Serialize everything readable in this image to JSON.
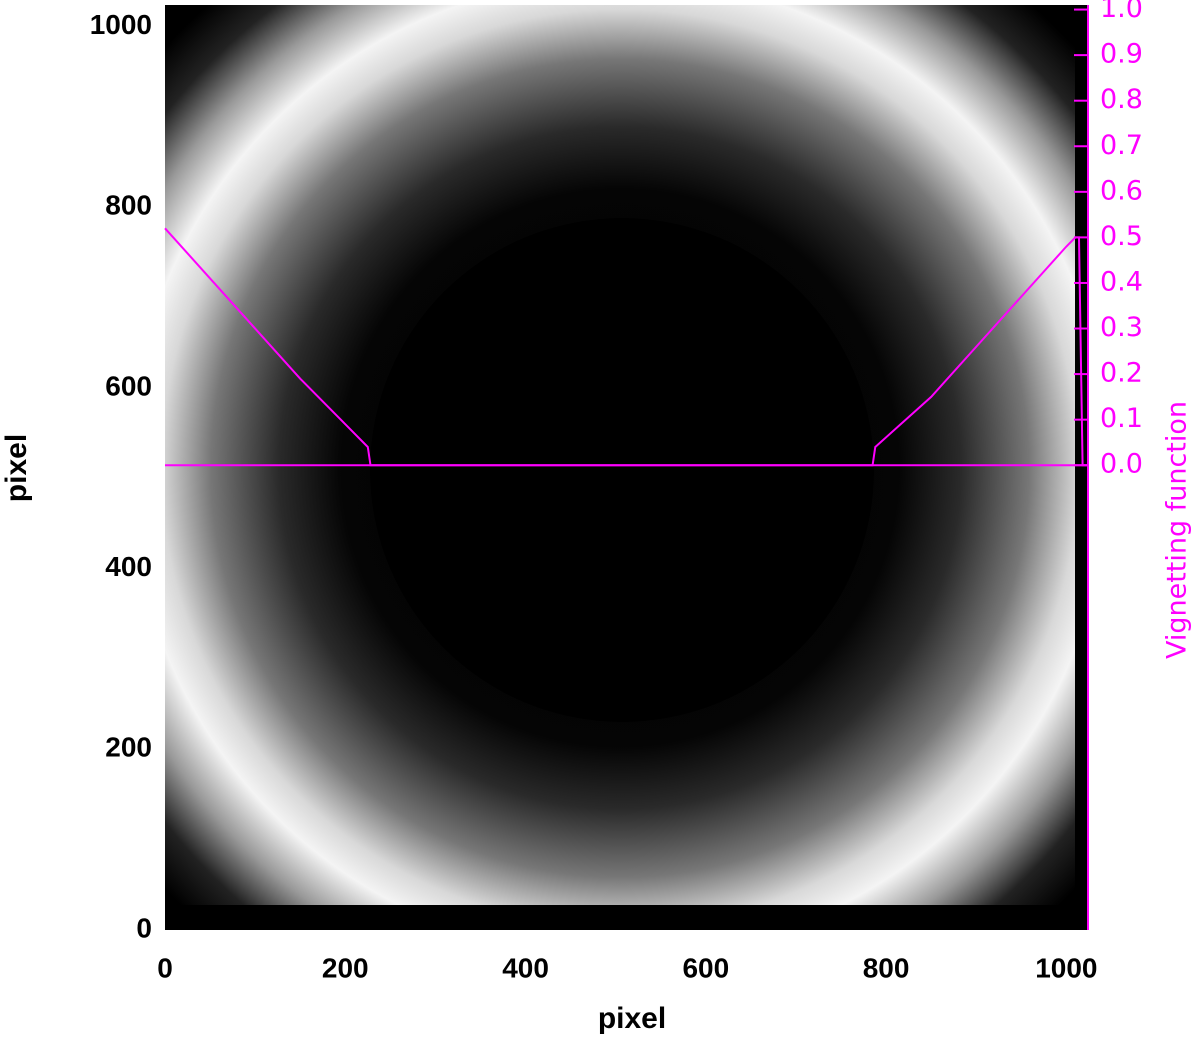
{
  "chart_data": {
    "type": "line",
    "xlabel": "pixel",
    "ylabel": "pixel",
    "y2label": "Vignetting function",
    "xlim": [
      0,
      1024
    ],
    "xticks": [
      0,
      200,
      400,
      600,
      800,
      1000
    ],
    "ylim": [
      0,
      1024
    ],
    "yticks": [
      0,
      200,
      400,
      600,
      800,
      1000
    ],
    "y2lim": [
      -1.02,
      1.01
    ],
    "y2ticks": [
      {
        "value": 0,
        "label": "0.0"
      },
      0.1,
      0.2,
      0.3,
      0.4,
      0.5,
      0.6,
      0.7,
      0.8,
      0.9,
      {
        "value": 1,
        "label": "1.0"
      }
    ],
    "x": [
      0,
      50,
      100,
      150,
      200,
      225,
      228,
      785,
      788,
      850,
      900,
      950,
      1000,
      1010,
      1014,
      1018,
      1024
    ],
    "series": [
      {
        "color": "#ff00ff",
        "axis": "y2",
        "values": [
          0.52,
          0.41,
          0.3,
          0.19,
          0.09,
          0.04,
          0,
          0,
          0.04,
          0.15,
          0.26,
          0.37,
          0.48,
          0.5,
          0.5,
          0,
          0
        ]
      }
    ]
  }
}
